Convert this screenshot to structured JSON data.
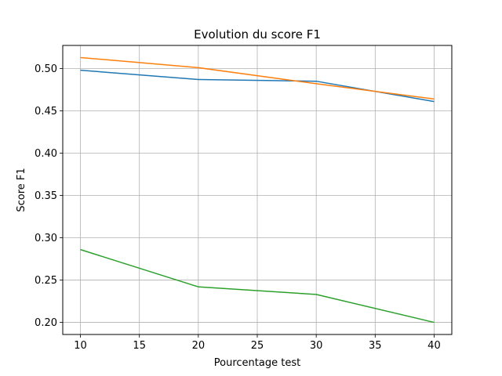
{
  "chart_data": {
    "type": "line",
    "title": "Evolution du score F1",
    "xlabel": "Pourcentage test",
    "ylabel": "Score F1",
    "x": [
      10,
      20,
      30,
      40
    ],
    "xlim": [
      8.5,
      41.5
    ],
    "ylim": [
      0.1857,
      0.5273
    ],
    "xticks": [
      "10",
      "15",
      "20",
      "25",
      "30",
      "35",
      "40"
    ],
    "yticks": [
      "0.20",
      "0.25",
      "0.30",
      "0.35",
      "0.40",
      "0.45",
      "0.50"
    ],
    "grid": true,
    "legend": "none",
    "series": [
      {
        "color": "#1f77b4",
        "values": [
          0.498,
          0.487,
          0.485,
          0.461
        ]
      },
      {
        "color": "#ff7f0e",
        "values": [
          0.513,
          0.501,
          0.482,
          0.464
        ]
      },
      {
        "color": "#2ca02c",
        "values": [
          0.286,
          0.242,
          0.233,
          0.2
        ]
      }
    ]
  }
}
